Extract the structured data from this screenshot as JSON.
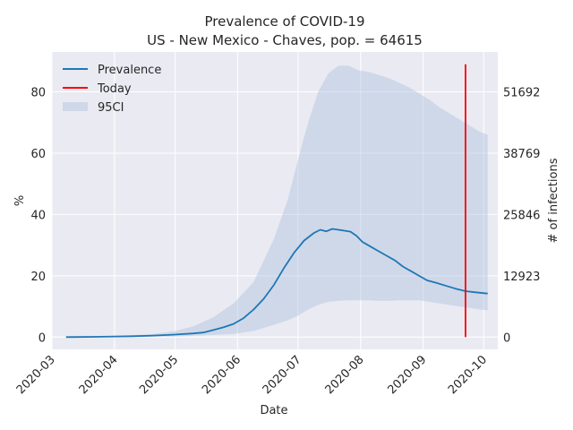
{
  "chart_data": {
    "type": "line",
    "title": "Prevalence of COVID-19",
    "subtitle": "US - New Mexico - Chaves, pop. = 64615",
    "xlabel": "Date",
    "ylabel": "%",
    "y2label": "# of infections",
    "x_ticks": [
      "2020-03",
      "2020-04",
      "2020-05",
      "2020-06",
      "2020-07",
      "2020-08",
      "2020-09",
      "2020-10"
    ],
    "y_ticks": [
      "0",
      "20",
      "40",
      "60",
      "80"
    ],
    "y2_ticks": [
      "0",
      "12923",
      "25846",
      "38769",
      "51692"
    ],
    "ylim": [
      -4,
      93
    ],
    "grid": true,
    "legend_position": "top-left",
    "legend": [
      "Prevalence",
      "Today",
      "95CI"
    ],
    "today": "2020-09-22",
    "colors": {
      "prevalence": "#1f77b4",
      "today": "#ff0000",
      "ci": "#b0c4de",
      "background": "#eaeaf2",
      "grid": "#ffffff"
    },
    "series": [
      {
        "name": "Prevalence",
        "x": [
          "2020-03-08",
          "2020-03-22",
          "2020-04-01",
          "2020-04-10",
          "2020-04-20",
          "2020-04-30",
          "2020-05-10",
          "2020-05-15",
          "2020-05-20",
          "2020-05-25",
          "2020-05-30",
          "2020-06-04",
          "2020-06-09",
          "2020-06-14",
          "2020-06-19",
          "2020-06-24",
          "2020-06-29",
          "2020-07-04",
          "2020-07-09",
          "2020-07-12",
          "2020-07-15",
          "2020-07-18",
          "2020-07-21",
          "2020-07-24",
          "2020-07-27",
          "2020-07-30",
          "2020-08-02",
          "2020-08-06",
          "2020-08-10",
          "2020-08-14",
          "2020-08-18",
          "2020-08-22",
          "2020-08-26",
          "2020-08-30",
          "2020-09-03",
          "2020-09-07",
          "2020-09-12",
          "2020-09-17",
          "2020-09-22",
          "2020-09-27",
          "2020-10-03"
        ],
        "y": [
          0,
          0.1,
          0.2,
          0.3,
          0.5,
          0.8,
          1.2,
          1.5,
          2.3,
          3.2,
          4.3,
          6.2,
          9,
          12.5,
          17,
          22.5,
          27.5,
          31.5,
          34,
          35,
          34.5,
          35.3,
          35,
          34.7,
          34.4,
          33,
          31,
          29.5,
          28,
          26.5,
          25,
          23,
          21.5,
          20,
          18.5,
          17.8,
          16.8,
          15.8,
          15,
          14.6,
          14.2
        ]
      }
    ],
    "ci_band": {
      "name": "95CI",
      "x": [
        "2020-03-08",
        "2020-04-01",
        "2020-04-20",
        "2020-05-01",
        "2020-05-10",
        "2020-05-20",
        "2020-05-30",
        "2020-06-09",
        "2020-06-19",
        "2020-06-26",
        "2020-07-01",
        "2020-07-06",
        "2020-07-11",
        "2020-07-16",
        "2020-07-21",
        "2020-07-26",
        "2020-07-31",
        "2020-08-05",
        "2020-08-10",
        "2020-08-15",
        "2020-08-20",
        "2020-08-25",
        "2020-08-30",
        "2020-09-04",
        "2020-09-09",
        "2020-09-14",
        "2020-09-19",
        "2020-09-24",
        "2020-09-29",
        "2020-10-03"
      ],
      "lower": [
        0,
        0,
        0.1,
        0.2,
        0.4,
        0.7,
        1,
        2,
        4,
        5.5,
        7,
        9,
        10.5,
        11.5,
        11.8,
        12,
        12,
        12,
        11.8,
        11.8,
        12,
        12,
        12,
        11.5,
        11,
        10.5,
        10,
        9.5,
        9,
        8.8
      ],
      "upper": [
        0,
        0.3,
        1,
        2,
        3.5,
        6.5,
        11,
        18,
        32,
        45,
        58,
        70,
        80,
        86,
        88.5,
        88.5,
        87,
        86.5,
        85.5,
        84.5,
        83,
        81.5,
        79.5,
        77.5,
        75,
        73,
        71,
        69,
        67,
        66
      ]
    }
  }
}
